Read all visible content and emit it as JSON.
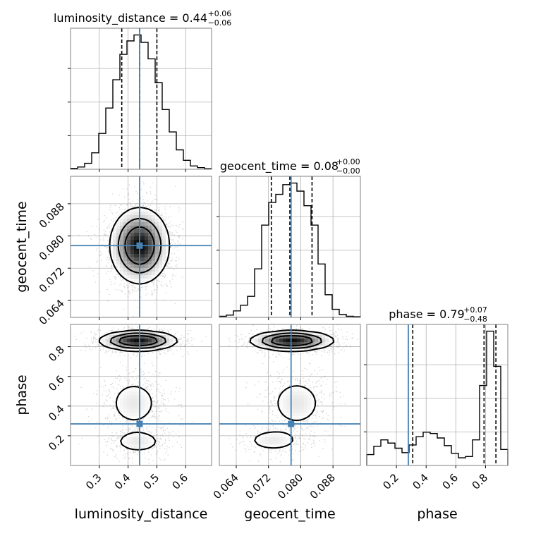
{
  "chart_data": {
    "type": "corner",
    "parameters": [
      "luminosity_distance",
      "geocent_time",
      "phase"
    ],
    "truth": {
      "luminosity_distance": 0.44,
      "geocent_time": 0.0776,
      "phase": 0.28
    },
    "truth_color": "#4682b4",
    "grid": true,
    "titles": [
      {
        "param": "luminosity_distance",
        "text": "luminosity_distance = 0.44",
        "sup": "+0.06",
        "sub": "−0.06"
      },
      {
        "param": "geocent_time",
        "text": "geocent_time = 0.08",
        "sup": "+0.00",
        "sub": "−0.00"
      },
      {
        "param": "phase",
        "text": "phase = 0.79",
        "sup": "+0.07",
        "sub": "−0.48"
      }
    ],
    "axes": {
      "luminosity_distance": {
        "label": "luminosity_distance",
        "range": [
          0.2,
          0.69
        ],
        "ticks": [
          0.3,
          0.4,
          0.5,
          0.6
        ],
        "tick_labels": [
          "0.3",
          "0.4",
          "0.5",
          "0.6"
        ]
      },
      "geocent_time": {
        "label": "geocent_time",
        "range": [
          0.0598,
          0.0948
        ],
        "ticks": [
          0.064,
          0.072,
          0.08,
          0.088
        ],
        "tick_labels": [
          "0.064",
          "0.072",
          "0.080",
          "0.088"
        ]
      },
      "phase": {
        "label": "phase",
        "range": [
          0.0,
          0.95
        ],
        "ticks": [
          0.2,
          0.4,
          0.6,
          0.8
        ],
        "tick_labels": [
          "0.2",
          "0.4",
          "0.6",
          "0.8"
        ]
      }
    },
    "histograms": [
      {
        "param": "luminosity_distance",
        "quantiles": [
          0.378,
          0.44,
          0.5
        ],
        "bin_edges": [
          0.2,
          0.2245,
          0.249,
          0.2735,
          0.298,
          0.3225,
          0.347,
          0.3715,
          0.396,
          0.4205,
          0.445,
          0.4695,
          0.494,
          0.5185,
          0.543,
          0.5675,
          0.592,
          0.6165,
          0.641,
          0.6655,
          0.69
        ],
        "counts": [
          0.6,
          1.5,
          4,
          11,
          24,
          41,
          60,
          77,
          86,
          90,
          85,
          74,
          58,
          40,
          25,
          13,
          6,
          2.2,
          1.1,
          0.4
        ]
      },
      {
        "param": "geocent_time",
        "quantiles": [
          0.0727,
          0.0773,
          0.0828
        ],
        "bin_edges": [
          0.0598,
          0.06155,
          0.0633,
          0.06505,
          0.0668,
          0.06855,
          0.0703,
          0.07205,
          0.0738,
          0.07555,
          0.0773,
          0.07905,
          0.0808,
          0.08255,
          0.0843,
          0.08605,
          0.0878,
          0.08955,
          0.0913,
          0.09305,
          0.0948
        ],
        "counts": [
          0.7,
          1.4,
          4,
          7.5,
          13,
          30,
          57,
          71,
          76,
          82,
          83,
          78,
          69,
          57,
          33,
          14,
          5,
          1.8,
          0.7,
          0.4
        ]
      },
      {
        "param": "phase",
        "quantiles": [
          0.31,
          0.79,
          0.87
        ],
        "bin_edges": [
          0.0,
          0.0475,
          0.095,
          0.1425,
          0.19,
          0.2375,
          0.285,
          0.3325,
          0.38,
          0.4275,
          0.475,
          0.5225,
          0.57,
          0.6175,
          0.665,
          0.7125,
          0.76,
          0.8075,
          0.855,
          0.9025,
          0.95
        ],
        "counts": [
          1.7,
          3.0,
          4.0,
          3.5,
          2.7,
          2.0,
          3.2,
          4.5,
          5.2,
          5.0,
          4.3,
          3.1,
          1.9,
          1.2,
          1.4,
          4.0,
          12.5,
          21.0,
          15.5,
          2.5
        ]
      }
    ],
    "joint": [
      {
        "x": "luminosity_distance",
        "y": "geocent_time",
        "modes": [
          {
            "cx": 0.44,
            "cy": 0.0776,
            "sx": 0.046,
            "sy": 0.0042,
            "w": 1
          }
        ]
      },
      {
        "x": "luminosity_distance",
        "y": "phase",
        "modes": [
          {
            "cx": 0.435,
            "cy": 0.84,
            "sx": 0.06,
            "sy": 0.03,
            "w": 0.62
          },
          {
            "cx": 0.42,
            "cy": 0.42,
            "sx": 0.052,
            "sy": 0.095,
            "w": 0.26
          },
          {
            "cx": 0.435,
            "cy": 0.16,
            "sx": 0.05,
            "sy": 0.045,
            "w": 0.12
          }
        ]
      },
      {
        "x": "geocent_time",
        "y": "phase",
        "modes": [
          {
            "cx": 0.0778,
            "cy": 0.84,
            "sx": 0.0046,
            "sy": 0.03,
            "w": 0.62
          },
          {
            "cx": 0.079,
            "cy": 0.42,
            "sx": 0.0038,
            "sy": 0.095,
            "w": 0.26
          },
          {
            "cx": 0.0732,
            "cy": 0.17,
            "sx": 0.004,
            "sy": 0.045,
            "w": 0.12
          }
        ]
      }
    ]
  }
}
